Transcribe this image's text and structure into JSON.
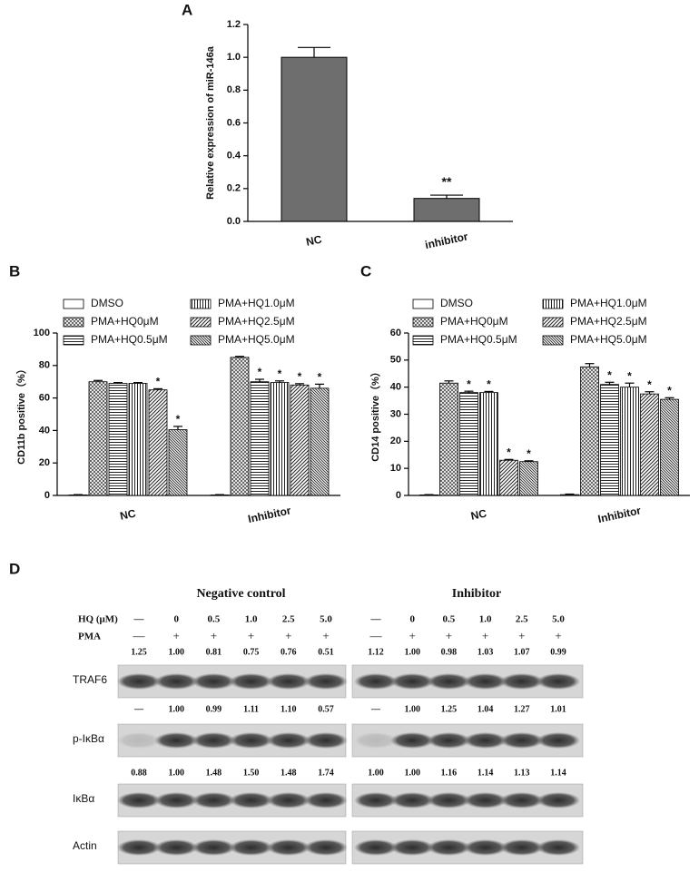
{
  "chart_data": [
    {
      "type": "bar",
      "panel": "A",
      "ylabel": "Relative expression of miR-146a",
      "color": "#6e6e6e",
      "categories": [
        "NC",
        "inhibitor"
      ],
      "values": [
        1.0,
        0.14
      ],
      "errors": [
        0.06,
        0.02
      ],
      "significance": [
        {
          "category": 1,
          "label": "**"
        }
      ],
      "ylim": [
        0,
        1.2
      ],
      "yticks": [
        {
          "value": 0,
          "label": "0.0"
        },
        0.2,
        0.4,
        0.6,
        0.8,
        {
          "value": 1,
          "label": "1.0"
        },
        1.2
      ]
    },
    {
      "type": "grouped-bar",
      "panel": "B",
      "ylabel": "CD11b positive（%）",
      "categories": [
        "NC",
        "Inhibitor"
      ],
      "series": [
        {
          "name": "DMSO",
          "pattern": "none",
          "values": [
            0.3,
            0.3
          ],
          "errors": [
            0.2,
            0.2
          ]
        },
        {
          "name": "PMA+HQ0μM",
          "pattern": "crosshatch",
          "values": [
            70,
            85
          ],
          "errors": [
            0.8,
            0.6
          ]
        },
        {
          "name": "PMA+HQ0.5μM",
          "pattern": "horizontal",
          "values": [
            69,
            70
          ],
          "errors": [
            0.5,
            1.5
          ]
        },
        {
          "name": "PMA+HQ1.0μM",
          "pattern": "vertical",
          "values": [
            69,
            69.5
          ],
          "errors": [
            0.5,
            1
          ]
        },
        {
          "name": "PMA+HQ2.5μM",
          "pattern": "diagonal",
          "values": [
            65,
            68
          ],
          "errors": [
            0.7,
            0.8
          ]
        },
        {
          "name": "PMA+HQ5.0μM",
          "pattern": "diagonal-dense",
          "values": [
            40.5,
            66
          ],
          "errors": [
            2,
            2.5
          ]
        }
      ],
      "significance": [
        {
          "series": 4,
          "category": 0,
          "label": "*"
        },
        {
          "series": 5,
          "category": 0,
          "label": "*"
        },
        {
          "series": 2,
          "category": 1,
          "label": "*"
        },
        {
          "series": 3,
          "category": 1,
          "label": "*"
        },
        {
          "series": 4,
          "category": 1,
          "label": "*"
        },
        {
          "series": 5,
          "category": 1,
          "label": "*"
        }
      ],
      "ylim": [
        0,
        100
      ],
      "yticks": [
        0,
        20,
        40,
        60,
        80,
        100
      ]
    },
    {
      "type": "grouped-bar",
      "panel": "C",
      "ylabel": "CD14 positive（%）",
      "categories": [
        "NC",
        "Inhibitor"
      ],
      "series": [
        {
          "name": "DMSO",
          "pattern": "none",
          "values": [
            0.2,
            0.3
          ],
          "errors": [
            0.1,
            0.2
          ]
        },
        {
          "name": "PMA+HQ0μM",
          "pattern": "crosshatch",
          "values": [
            41.5,
            47.5
          ],
          "errors": [
            0.8,
            1.2
          ]
        },
        {
          "name": "PMA+HQ0.5μM",
          "pattern": "horizontal",
          "values": [
            38,
            41
          ],
          "errors": [
            0.5,
            0.8
          ]
        },
        {
          "name": "PMA+HQ1.0μM",
          "pattern": "vertical",
          "values": [
            38,
            40
          ],
          "errors": [
            0.4,
            1.5
          ]
        },
        {
          "name": "PMA+HQ2.5μM",
          "pattern": "diagonal",
          "values": [
            13,
            37.5
          ],
          "errors": [
            0.3,
            0.8
          ]
        },
        {
          "name": "PMA+HQ5.0μM",
          "pattern": "diagonal-dense",
          "values": [
            12.5,
            35.5
          ],
          "errors": [
            0.3,
            0.6
          ]
        }
      ],
      "significance": [
        {
          "series": 2,
          "category": 0,
          "label": "*"
        },
        {
          "series": 3,
          "category": 0,
          "label": "*"
        },
        {
          "series": 4,
          "category": 0,
          "label": "*"
        },
        {
          "series": 5,
          "category": 0,
          "label": "*"
        },
        {
          "series": 2,
          "category": 1,
          "label": "*"
        },
        {
          "series": 3,
          "category": 1,
          "label": "*"
        },
        {
          "series": 4,
          "category": 1,
          "label": "*"
        },
        {
          "series": 5,
          "category": 1,
          "label": "*"
        }
      ],
      "ylim": [
        0,
        60
      ],
      "yticks": [
        0,
        10,
        20,
        30,
        40,
        50,
        60
      ]
    }
  ],
  "western_blot": {
    "panel": "D",
    "hq_label": "HQ (μM)",
    "pma_label": "PMA",
    "groups": [
      {
        "title": "Negative control",
        "hq": [
          "—",
          "0",
          "0.5",
          "1.0",
          "2.5",
          "5.0"
        ],
        "pma": [
          "—",
          "+",
          "+",
          "+",
          "+",
          "+"
        ]
      },
      {
        "title": "Inhibitor",
        "hq": [
          "—",
          "0",
          "0.5",
          "1.0",
          "2.5",
          "5.0"
        ],
        "pma": [
          "—",
          "+",
          "+",
          "+",
          "+",
          "+"
        ]
      }
    ],
    "blots": [
      {
        "name": "TRAF6",
        "quant": [
          [
            "1.25",
            "1.00",
            "0.81",
            "0.75",
            "0.76",
            "0.51"
          ],
          [
            "1.12",
            "1.00",
            "0.98",
            "1.03",
            "1.07",
            "0.99"
          ]
        ]
      },
      {
        "name": "p-IκBα",
        "quant": [
          [
            "—",
            "1.00",
            "0.99",
            "1.11",
            "1.10",
            "0.57"
          ],
          [
            "—",
            "1.00",
            "1.25",
            "1.04",
            "1.27",
            "1.01"
          ]
        ]
      },
      {
        "name": "IκBα",
        "quant": [
          [
            "0.88",
            "1.00",
            "1.48",
            "1.50",
            "1.48",
            "1.74"
          ],
          [
            "1.00",
            "1.00",
            "1.16",
            "1.14",
            "1.13",
            "1.14"
          ]
        ]
      },
      {
        "name": "Actin"
      }
    ]
  }
}
